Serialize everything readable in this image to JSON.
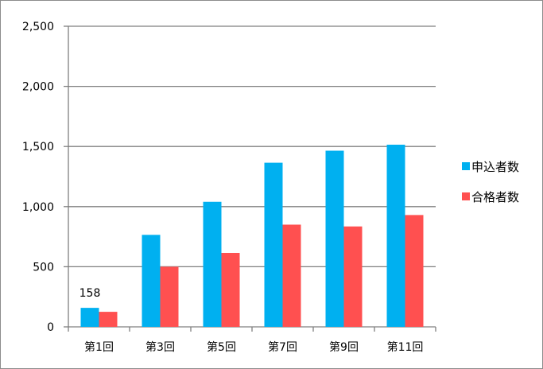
{
  "chart_data": {
    "type": "bar",
    "title": "",
    "xlabel": "",
    "ylabel": "",
    "categories": [
      "第1回",
      "第3回",
      "第5回",
      "第7回",
      "第9回",
      "第11回"
    ],
    "series": [
      {
        "name": "申込者数",
        "color": "#00b0f0",
        "values": [
          158,
          765,
          1040,
          1365,
          1465,
          1515
        ]
      },
      {
        "name": "合格者数",
        "color": "#ff5050",
        "values": [
          125,
          500,
          615,
          850,
          835,
          930
        ]
      }
    ],
    "ylim": [
      0,
      2500
    ],
    "yticks": [
      0,
      500,
      1000,
      1500,
      2000,
      2500
    ],
    "ytick_labels": [
      "0",
      "500",
      "1,000",
      "1,500",
      "2,000",
      "2,500"
    ],
    "data_labels": [
      {
        "series": 0,
        "index": 0,
        "text": "158"
      }
    ],
    "grid": true,
    "legend_position": "right"
  }
}
